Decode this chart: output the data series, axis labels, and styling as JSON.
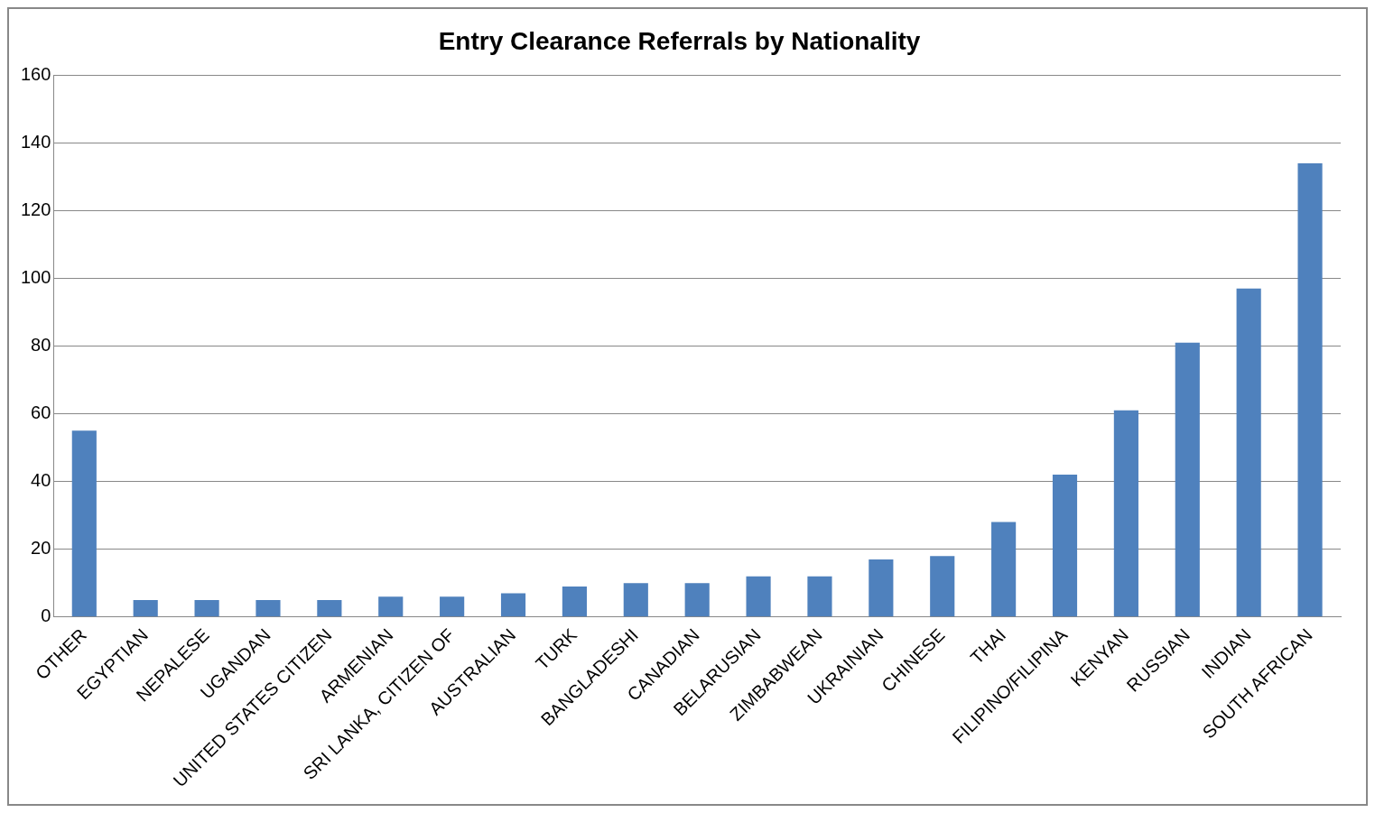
{
  "chart_data": {
    "type": "bar",
    "title": "Entry Clearance Referrals by Nationality",
    "categories": [
      "OTHER",
      "EGYPTIAN",
      "NEPALESE",
      "UGANDAN",
      "UNITED STATES CITIZEN",
      "ARMENIAN",
      "SRI LANKA, CITIZEN OF",
      "AUSTRALIAN",
      "TURK",
      "BANGLADESHI",
      "CANADIAN",
      "BELARUSIAN",
      "ZIMBABWEAN",
      "UKRAINIAN",
      "CHINESE",
      "THAI",
      "FILIPINO/FILIPINA",
      "KENYAN",
      "RUSSIAN",
      "INDIAN",
      "SOUTH AFRICAN"
    ],
    "values": [
      55,
      5,
      5,
      5,
      5,
      6,
      6,
      7,
      9,
      10,
      10,
      12,
      12,
      17,
      18,
      28,
      42,
      61,
      81,
      97,
      134
    ],
    "color": "#4f81bd",
    "ylim": [
      0,
      160
    ],
    "yticks": [
      0,
      20,
      40,
      60,
      80,
      100,
      120,
      140,
      160
    ],
    "grid": "y"
  }
}
